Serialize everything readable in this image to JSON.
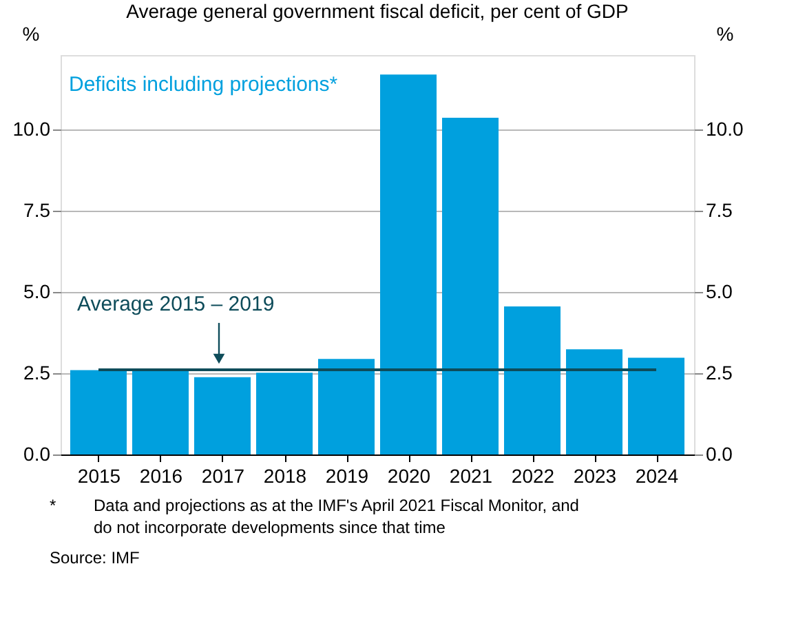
{
  "chart_data": {
    "type": "bar",
    "title": "Average general government fiscal deficit, per cent of GDP",
    "ylabel": "%",
    "y2label": "%",
    "categories": [
      "2015",
      "2016",
      "2017",
      "2018",
      "2019",
      "2020",
      "2021",
      "2022",
      "2023",
      "2024"
    ],
    "series": [
      {
        "name": "Deficits including projections*",
        "color": "#00a0de",
        "values": [
          2.6,
          2.64,
          2.38,
          2.52,
          2.94,
          11.7,
          10.37,
          4.56,
          3.24,
          2.98
        ]
      }
    ],
    "ylim": [
      0,
      12.3
    ],
    "yticks": [
      {
        "value": 0,
        "label": "0.0"
      },
      {
        "value": 2.5,
        "label": "2.5"
      },
      {
        "value": 5,
        "label": "5.0"
      },
      {
        "value": 7.5,
        "label": "7.5"
      },
      {
        "value": 10,
        "label": "10.0"
      }
    ],
    "y2lim": [
      0,
      12.3
    ],
    "y2ticks": [
      {
        "value": 0,
        "label": "0.0"
      },
      {
        "value": 2.5,
        "label": "2.5"
      },
      {
        "value": 5,
        "label": "5.0"
      },
      {
        "value": 7.5,
        "label": "7.5"
      },
      {
        "value": 10,
        "label": "10.0"
      }
    ],
    "grid": "y",
    "legend": "top left",
    "ref_lines": [
      {
        "axis": "y",
        "value": 2.61,
        "label": "Average 2015 – 2019",
        "color": "#0e4c5a"
      }
    ],
    "annotations": [
      "*",
      "Data and projections as at the IMF's April 2021 Fiscal Monitor, and",
      "do not incorporate developments since that time",
      "Source:   IMF"
    ]
  }
}
